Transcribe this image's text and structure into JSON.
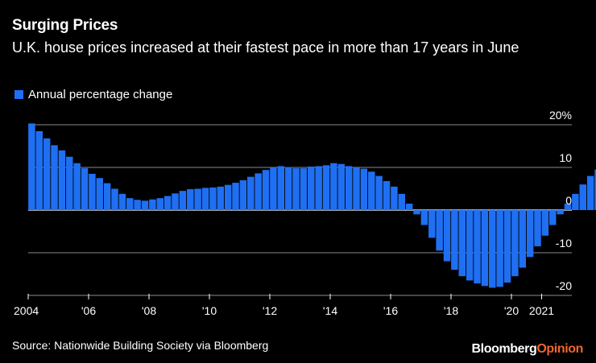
{
  "title": "Surging Prices",
  "subtitle": "U.K. house prices increased at their fastest pace in more than 17 years in June",
  "legend": {
    "label": "Annual percentage change"
  },
  "source": "Source: Nationwide Building Society via Bloomberg",
  "brand": {
    "part1": "Bloomberg",
    "part2": "Opinion"
  },
  "colors": {
    "bar": "#1f6ff2",
    "grid": "#8a8a8a",
    "baseline": "#ffffff",
    "brand_orange": "#f2652b",
    "background": "#000000"
  },
  "chart_data": {
    "type": "bar",
    "title": "Surging Prices",
    "subtitle": "U.K. house prices increased at their fastest pace in more than 17 years in June",
    "series_name": "Annual percentage change",
    "xlabel": "",
    "ylabel": "",
    "x_start": 2004.0,
    "x_step": 0.25,
    "xlim": [
      2004.0,
      2022.0
    ],
    "ylim": [
      -20,
      20
    ],
    "y_ticks": [
      {
        "value": 20,
        "label": "20%"
      },
      {
        "value": 10,
        "label": "10"
      },
      {
        "value": 0,
        "label": "0"
      },
      {
        "value": -10,
        "label": "-10"
      },
      {
        "value": -20,
        "label": "-20"
      }
    ],
    "x_ticks": [
      {
        "value": 2004,
        "label": "2004"
      },
      {
        "value": 2006,
        "label": "'06"
      },
      {
        "value": 2008,
        "label": "'08"
      },
      {
        "value": 2010,
        "label": "'10"
      },
      {
        "value": 2012,
        "label": "'12"
      },
      {
        "value": 2014,
        "label": "'14"
      },
      {
        "value": 2016,
        "label": "'16"
      },
      {
        "value": 2018,
        "label": "'18"
      },
      {
        "value": 2020,
        "label": "'20"
      },
      {
        "value": 2021,
        "label": "2021"
      }
    ],
    "values": [
      20.3,
      18.5,
      16.8,
      15.2,
      14.0,
      12.5,
      11.0,
      9.8,
      8.5,
      7.5,
      6.3,
      5.0,
      3.8,
      2.8,
      2.4,
      2.2,
      2.5,
      2.8,
      3.3,
      3.9,
      4.5,
      4.9,
      5.0,
      5.2,
      5.3,
      5.5,
      5.9,
      6.4,
      7.0,
      7.8,
      8.6,
      9.4,
      10.0,
      10.3,
      10.1,
      9.8,
      9.8,
      10.2,
      10.3,
      10.5,
      11.0,
      10.8,
      10.3,
      10.0,
      9.7,
      9.0,
      8.0,
      6.8,
      5.5,
      3.8,
      1.5,
      -1.0,
      -3.5,
      -6.5,
      -9.5,
      -12.0,
      -14.0,
      -15.5,
      -16.5,
      -17.2,
      -17.8,
      -18.2,
      -18.0,
      -17.0,
      -15.5,
      -13.5,
      -11.0,
      -8.5,
      -6.0,
      -3.5,
      -1.0,
      1.5,
      3.8,
      6.0,
      8.0,
      9.5,
      10.2,
      10.4,
      10.0,
      9.3,
      8.2,
      6.9,
      5.4,
      4.0,
      2.7,
      1.6,
      0.8,
      0.2,
      -0.5,
      -0.8,
      -1.2,
      -0.8,
      -0.5,
      -0.3,
      -0.2,
      0.0,
      0.2,
      0.7,
      1.3,
      1.6,
      1.4,
      1.0,
      0.6,
      0.2,
      -0.3,
      -0.7,
      -1.0,
      -1.5,
      -2.0,
      -2.5,
      -2.3,
      -1.9,
      -1.6,
      -1.4,
      -1.2,
      -0.8,
      -0.2,
      0.6,
      1.5,
      2.5,
      3.5,
      4.5,
      5.5,
      6.5,
      7.5,
      8.4,
      9.3,
      10.0,
      10.6,
      11.0,
      11.2,
      10.9,
      10.5,
      10.0,
      9.3,
      8.5,
      7.8,
      7.1,
      6.5,
      5.9,
      5.3,
      4.8,
      4.4,
      4.0,
      3.7,
      3.5,
      3.5,
      3.7,
      3.9,
      4.1,
      4.3,
      4.5,
      4.7,
      4.9,
      5.0,
      5.1,
      5.1,
      5.0,
      4.9,
      4.8,
      4.7,
      4.6,
      4.5,
      4.4,
      4.3,
      4.2,
      4.0,
      3.6,
      3.2,
      2.9,
      2.7,
      2.6,
      2.6,
      2.7,
      2.8,
      2.8,
      2.7,
      2.6,
      2.5,
      2.4,
      2.3,
      2.2,
      2.1,
      1.9,
      1.6,
      1.3,
      1.0,
      0.7,
      0.5,
      0.4,
      0.3,
      0.4,
      0.5,
      0.6,
      0.7,
      0.8,
      0.9,
      1.2,
      1.8,
      2.5,
      3.2,
      3.8,
      4.5,
      5.3,
      6.2,
      7.0,
      7.6,
      8.0,
      8.0,
      7.6,
      7.3,
      7.0,
      7.5,
      8.5,
      11.0,
      13.4
    ]
  }
}
